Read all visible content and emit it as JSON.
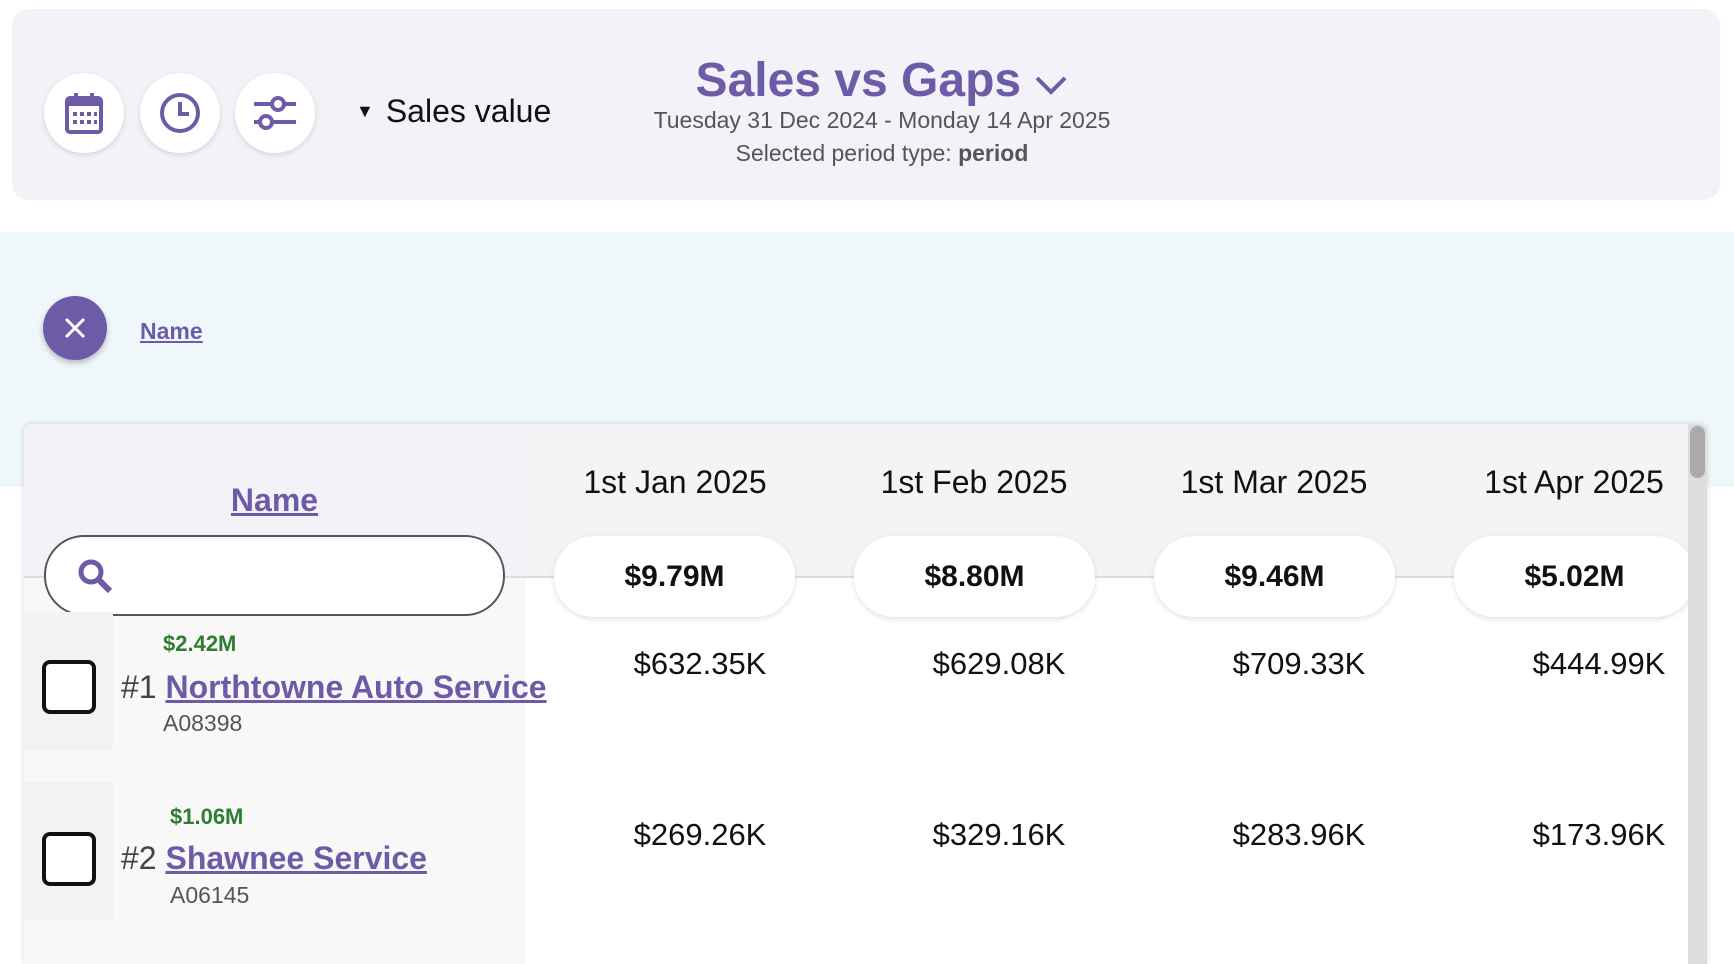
{
  "header": {
    "buttons": [
      "calendar-icon",
      "clock-icon",
      "sliders-icon"
    ],
    "measure_label": "Sales value",
    "title": "Sales vs Gaps",
    "date_range": "Tuesday 31 Dec 2024 - Monday 14 Apr 2025",
    "period_prefix": "Selected period type: ",
    "period_value": "period"
  },
  "filter": {
    "label": "Name"
  },
  "table": {
    "name_header": "Name",
    "search_placeholder": "",
    "columns": [
      {
        "label": "1st Jan 2025",
        "total": "$9.79M"
      },
      {
        "label": "1st Feb 2025",
        "total": "$8.80M"
      },
      {
        "label": "1st Mar 2025",
        "total": "$9.46M"
      },
      {
        "label": "1st Apr 2025",
        "total": "$5.02M"
      }
    ],
    "rows": [
      {
        "total": "$2.42M",
        "rank": "#1",
        "name": "Northtowne Auto Service",
        "code": "A08398",
        "values": [
          "$632.35K",
          "$629.08K",
          "$709.33K",
          "$444.99K"
        ]
      },
      {
        "total": "$1.06M",
        "rank": "#2",
        "name": "Shawnee Service",
        "code": "A06145",
        "values": [
          "$269.26K",
          "$329.16K",
          "$283.96K",
          "$173.96K"
        ]
      }
    ]
  },
  "colors": {
    "accent": "#6e5ba8",
    "positive": "#2e7d32"
  }
}
